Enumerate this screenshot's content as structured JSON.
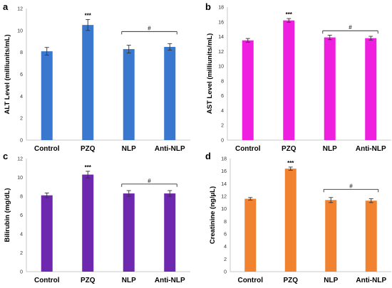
{
  "chart_data": [
    {
      "panel": "a",
      "type": "bar",
      "ylabel": "ALT Level (milliunits/mL)",
      "categories": [
        "Control",
        "PZQ",
        "NLP",
        "Anti-NLP"
      ],
      "values": [
        8.1,
        10.5,
        8.3,
        8.5
      ],
      "errors": [
        0.35,
        0.5,
        0.35,
        0.3
      ],
      "ylim": [
        0,
        12
      ],
      "yticks": [
        0,
        2,
        4,
        6,
        8,
        10,
        12
      ],
      "color": "#3a78d0",
      "stars": {
        "index": 1,
        "text": "***"
      },
      "bracket": {
        "from": 2,
        "to": 3,
        "y": 9.9,
        "text": "#"
      }
    },
    {
      "panel": "b",
      "type": "bar",
      "ylabel": "AST Level (milliunits/mL)",
      "categories": [
        "Control",
        "PZQ",
        "NLP",
        "Anti-NLP"
      ],
      "values": [
        13.5,
        16.2,
        13.9,
        13.8
      ],
      "errors": [
        0.25,
        0.25,
        0.3,
        0.25
      ],
      "ylim": [
        0,
        18
      ],
      "yticks": [
        0,
        2,
        4,
        6,
        8,
        10,
        12,
        14,
        16,
        18
      ],
      "color": "#ef1fe0",
      "stars": {
        "index": 1,
        "text": "***"
      },
      "bracket": {
        "from": 2,
        "to": 3,
        "y": 14.8,
        "text": "#"
      }
    },
    {
      "panel": "c",
      "type": "bar",
      "ylabel": "Bilirubin (mg/dL)",
      "categories": [
        "Control",
        "PZQ",
        "NLP",
        "Anti-NLP"
      ],
      "values": [
        8.1,
        10.3,
        8.3,
        8.3
      ],
      "errors": [
        0.25,
        0.35,
        0.3,
        0.3
      ],
      "ylim": [
        0,
        12
      ],
      "yticks": [
        0,
        2,
        4,
        6,
        8,
        10,
        12
      ],
      "color": "#6e28b0",
      "stars": {
        "index": 1,
        "text": "***"
      },
      "bracket": {
        "from": 2,
        "to": 3,
        "y": 9.3,
        "text": "#"
      }
    },
    {
      "panel": "d",
      "type": "bar",
      "ylabel": "Creatinine (ng/μL)",
      "categories": [
        "Control",
        "PZQ",
        "NLP",
        "Anti-NLP"
      ],
      "values": [
        11.6,
        16.4,
        11.4,
        11.3
      ],
      "errors": [
        0.2,
        0.25,
        0.4,
        0.3
      ],
      "ylim": [
        0,
        18
      ],
      "yticks": [
        0,
        2,
        4,
        6,
        8,
        10,
        12,
        14,
        16,
        18
      ],
      "color": "#f08230",
      "stars": {
        "index": 1,
        "text": "***"
      },
      "bracket": {
        "from": 2,
        "to": 3,
        "y": 13.1,
        "text": "#"
      }
    }
  ]
}
